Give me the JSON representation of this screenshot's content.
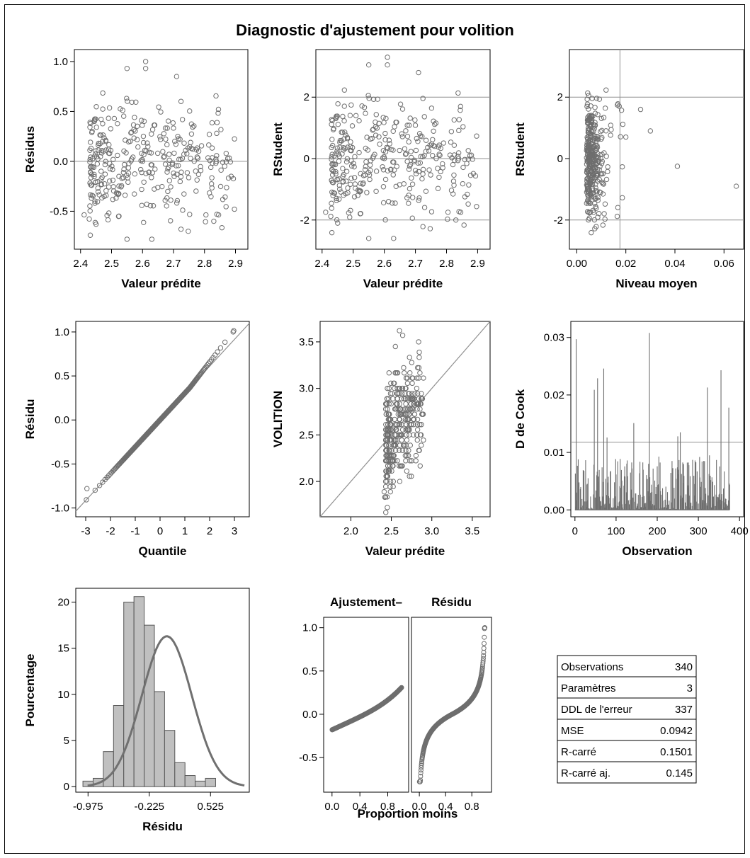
{
  "title": "Diagnostic d'ajustement pour volition",
  "colors": {
    "marker": "#6e6e6e",
    "refline": "#909090",
    "bar": "#c0c0c0",
    "bar_edge": "#555555",
    "curve": "#707070",
    "frame": "#000000"
  },
  "chart_data": [
    {
      "id": "resid-vs-pred",
      "type": "scatter",
      "xlabel": "Valeur prédite",
      "ylabel": "Résidus",
      "xlim": [
        2.38,
        2.94
      ],
      "ylim": [
        -0.88,
        1.12
      ],
      "xticks": [
        "2.4",
        "2.5",
        "2.6",
        "2.7",
        "2.8",
        "2.9"
      ],
      "yticks": [
        "-0.5",
        "0.0",
        "0.5",
        "1.0"
      ],
      "hlines": [
        0
      ],
      "n_points": 340,
      "marker": "open-circle",
      "highlighted_points": [
        [
          2.55,
          0.93
        ],
        [
          2.61,
          1.0
        ],
        [
          2.61,
          0.93
        ],
        [
          2.71,
          0.85
        ],
        [
          2.55,
          -0.78
        ],
        [
          2.63,
          -0.78
        ],
        [
          2.45,
          -0.63
        ],
        [
          2.83,
          -0.6
        ]
      ]
    },
    {
      "id": "rstudent-vs-pred",
      "type": "scatter",
      "xlabel": "Valeur prédite",
      "ylabel": "RStudent",
      "xlim": [
        2.38,
        2.94
      ],
      "ylim": [
        -2.95,
        3.55
      ],
      "xticks": [
        "2.4",
        "2.5",
        "2.6",
        "2.7",
        "2.8",
        "2.9"
      ],
      "yticks": [
        "-2",
        "0",
        "2"
      ],
      "hlines": [
        -2,
        0,
        2
      ],
      "n_points": 340,
      "marker": "open-circle",
      "highlighted_points": [
        [
          2.55,
          3.05
        ],
        [
          2.61,
          3.3
        ],
        [
          2.61,
          3.05
        ],
        [
          2.71,
          2.8
        ],
        [
          2.55,
          -2.6
        ],
        [
          2.63,
          -2.6
        ],
        [
          2.45,
          -2.1
        ],
        [
          2.83,
          -2.0
        ]
      ]
    },
    {
      "id": "rstudent-vs-leverage",
      "type": "scatter",
      "xlabel": "Niveau moyen",
      "ylabel": "RStudent",
      "xlim": [
        -0.003,
        0.068
      ],
      "ylim": [
        -2.95,
        3.55
      ],
      "xticks": [
        "0.00",
        "0.02",
        "0.04",
        "0.06"
      ],
      "yticks": [
        "-2",
        "0",
        "2"
      ],
      "hlines": [
        -2,
        2
      ],
      "vlines": [
        0.0176
      ],
      "n_points": 340,
      "marker": "open-circle",
      "highlighted_points": [
        [
          0.041,
          -0.25
        ],
        [
          0.065,
          -0.9
        ],
        [
          0.03,
          0.9
        ],
        [
          0.026,
          1.6
        ],
        [
          0.02,
          0.7
        ]
      ]
    },
    {
      "id": "qq-plot",
      "type": "scatter",
      "xlabel": "Quantile",
      "ylabel": "Résidu",
      "xlim": [
        -3.4,
        3.6
      ],
      "ylim": [
        -1.1,
        1.12
      ],
      "xticks": [
        "-3",
        "-2",
        "-1",
        "0",
        "1",
        "2",
        "3"
      ],
      "yticks": [
        "-1.0",
        "-0.5",
        "0.0",
        "0.5",
        "1.0"
      ],
      "reference_line": {
        "slope": 0.305,
        "intercept": 0.0
      },
      "n_points": 340,
      "marker": "open-circle",
      "extremes": [
        [
          -2.95,
          -0.78
        ],
        [
          2.95,
          1.0
        ]
      ]
    },
    {
      "id": "observed-vs-pred",
      "type": "scatter",
      "xlabel": "Valeur prédite",
      "ylabel": "VOLITION",
      "xlim": [
        1.62,
        3.72
      ],
      "ylim": [
        1.62,
        3.72
      ],
      "xticks": [
        "2.0",
        "2.5",
        "3.0",
        "3.5"
      ],
      "yticks": [
        "2.0",
        "2.5",
        "3.0",
        "3.5"
      ],
      "reference_line": {
        "slope": 1.0,
        "intercept": 0.0
      },
      "n_points": 340,
      "marker": "open-circle",
      "highlighted_points": [
        [
          2.6,
          3.62
        ],
        [
          2.64,
          3.57
        ],
        [
          2.55,
          3.45
        ],
        [
          2.42,
          1.83
        ],
        [
          2.45,
          1.72
        ]
      ]
    },
    {
      "id": "cooks-d",
      "type": "needle",
      "xlabel": "Observation",
      "ylabel": "D de Cook",
      "xlim": [
        -10,
        410
      ],
      "ylim": [
        -0.0012,
        0.0328
      ],
      "xticks": [
        "0",
        "100",
        "200",
        "300",
        "400"
      ],
      "yticks": [
        "0.00",
        "0.01",
        "0.02",
        "0.03"
      ],
      "hlines": [
        0.0118
      ],
      "n_obs": 376,
      "peaks": [
        [
          3,
          0.0297
        ],
        [
          47,
          0.0209
        ],
        [
          55,
          0.0229
        ],
        [
          70,
          0.0246
        ],
        [
          78,
          0.0126
        ],
        [
          143,
          0.0151
        ],
        [
          181,
          0.0308
        ],
        [
          250,
          0.0128
        ],
        [
          256,
          0.0135
        ],
        [
          322,
          0.0213
        ],
        [
          355,
          0.0243
        ],
        [
          374,
          0.0178
        ]
      ]
    },
    {
      "id": "residual-histogram",
      "type": "bar",
      "xlabel": "Résidu",
      "ylabel": "Pourcentage",
      "xlim": [
        -1.125,
        1.0
      ],
      "ylim": [
        -0.6,
        21.5
      ],
      "xticks": [
        "-0.975",
        "-0.225",
        "0.525"
      ],
      "yticks": [
        "0",
        "5",
        "10",
        "15",
        "20"
      ],
      "bin_width": 0.125,
      "bin_start": -0.975,
      "values": [
        0.6,
        0.9,
        3.8,
        8.8,
        20.0,
        20.6,
        17.5,
        10.3,
        6.1,
        2.6,
        1.2,
        0.6,
        0.9
      ],
      "normal_curve": {
        "mean": -0.01,
        "sd": 0.306
      }
    },
    {
      "id": "residual-fit-spread",
      "type": "line",
      "xlabel": "Proportion moins",
      "ylabel": "",
      "panels": [
        {
          "label": "Ajustement–",
          "xlim": [
            -0.12,
            1.1
          ],
          "ylim": [
            -0.9,
            1.12
          ],
          "xticks": [
            "0.0",
            "0.4",
            "0.8"
          ],
          "yticks": [
            "-0.5",
            "0.0",
            "0.5",
            "1.0"
          ],
          "y_min": -0.18,
          "y_max": 0.31
        },
        {
          "label": "Résidu",
          "xlim": [
            -0.12,
            1.1
          ],
          "ylim": [
            -0.9,
            1.12
          ],
          "xticks": [
            "0.0",
            "0.4",
            "0.8"
          ],
          "yticks": [],
          "y_min": -0.78,
          "y_max": 1.0
        }
      ]
    },
    {
      "id": "fit-statistics",
      "type": "table",
      "rows": [
        {
          "label": "Observations",
          "value": "340"
        },
        {
          "label": "Paramètres",
          "value": "3"
        },
        {
          "label": "DDL de l'erreur",
          "value": "337"
        },
        {
          "label": "MSE",
          "value": "0.0942"
        },
        {
          "label": "R-carré",
          "value": "0.1501"
        },
        {
          "label": "R-carré aj.",
          "value": "0.145"
        }
      ]
    }
  ]
}
